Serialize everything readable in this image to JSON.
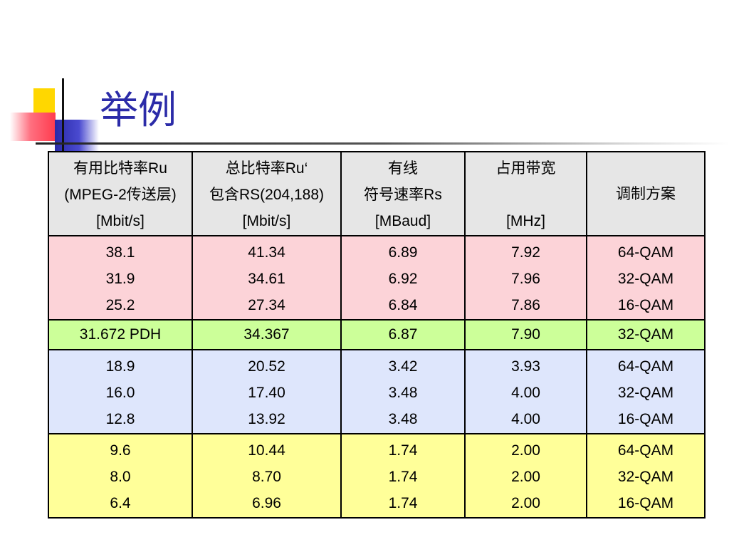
{
  "slide": {
    "title": "举例"
  },
  "table": {
    "headers": [
      [
        "有用比特率Ru",
        "(MPEG-2传送层)",
        "[Mbit/s]"
      ],
      [
        "总比特率Ru‘",
        "包含RS(204,188)",
        "[Mbit/s]"
      ],
      [
        "有线",
        "符号速率Rs",
        "[MBaud]"
      ],
      [
        "占用带宽",
        "",
        "[MHz]"
      ],
      [
        "调制方案"
      ]
    ],
    "groups": [
      {
        "name": "group-1",
        "color": "#fcd3d8",
        "cols": [
          [
            "38.1",
            "31.9",
            "25.2"
          ],
          [
            "41.34",
            "34.61",
            "27.34"
          ],
          [
            "6.89",
            "6.92",
            "6.84"
          ],
          [
            "7.92",
            "7.96",
            "7.86"
          ],
          [
            "64-QAM",
            "32-QAM",
            "16-QAM"
          ]
        ]
      },
      {
        "name": "group-2",
        "color": "#ccff99",
        "cols": [
          [
            "31.672 PDH"
          ],
          [
            "34.367"
          ],
          [
            "6.87"
          ],
          [
            "7.90"
          ],
          [
            "32-QAM"
          ]
        ]
      },
      {
        "name": "group-3",
        "color": "#dee6fc",
        "cols": [
          [
            "18.9",
            "16.0",
            "12.8"
          ],
          [
            "20.52",
            "17.40",
            "13.92"
          ],
          [
            "3.42",
            "3.48",
            "3.48"
          ],
          [
            "3.93",
            "4.00",
            "4.00"
          ],
          [
            "64-QAM",
            "32-QAM",
            "16-QAM"
          ]
        ]
      },
      {
        "name": "group-4",
        "color": "#ffff99",
        "cols": [
          [
            "9.6",
            "8.0",
            "6.4"
          ],
          [
            "10.44",
            "8.70",
            "6.96"
          ],
          [
            "1.74",
            "1.74",
            "1.74"
          ],
          [
            "2.00",
            "2.00",
            "2.00"
          ],
          [
            "64-QAM",
            "32-QAM",
            "16-QAM"
          ]
        ]
      }
    ]
  }
}
